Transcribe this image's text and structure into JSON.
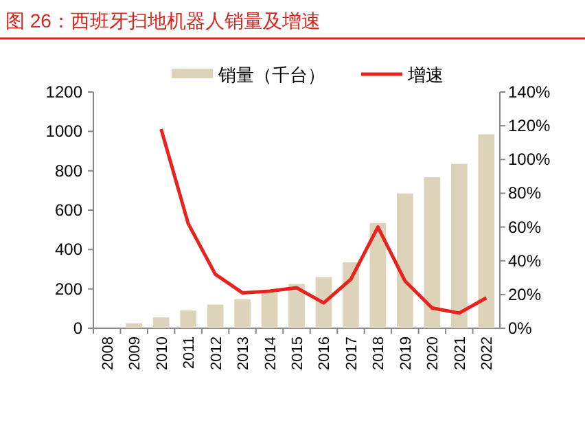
{
  "chart_data": {
    "type": "bar",
    "title": "图 26：西班牙扫地机器人销量及增速",
    "categories": [
      "2008",
      "2009",
      "2010",
      "2011",
      "2012",
      "2013",
      "2014",
      "2015",
      "2016",
      "2017",
      "2018",
      "2019",
      "2020",
      "2021",
      "2022"
    ],
    "series": [
      {
        "name": "销量（千台）",
        "color": "#ddd3bb",
        "values": [
          null,
          25,
          55,
          90,
          120,
          147,
          180,
          225,
          260,
          335,
          535,
          685,
          767,
          835,
          985
        ]
      },
      {
        "name": "增速",
        "type": "line",
        "axis": "y2",
        "color": "#e8231e",
        "values": [
          null,
          null,
          118,
          62,
          32,
          21,
          22,
          24,
          15,
          29,
          60,
          28,
          12,
          9,
          18
        ]
      }
    ],
    "ylim": [
      0,
      1200
    ],
    "yticks": [
      0,
      200,
      400,
      600,
      800,
      1000,
      1200
    ],
    "y2lim": [
      0,
      140
    ],
    "y2ticks": [
      {
        "value": 0,
        "label": "0%"
      },
      {
        "value": 20,
        "label": "20%"
      },
      {
        "value": 40,
        "label": "40%"
      },
      {
        "value": 60,
        "label": "60%"
      },
      {
        "value": 80,
        "label": "80%"
      },
      {
        "value": 100,
        "label": "100%"
      },
      {
        "value": 120,
        "label": "120%"
      },
      {
        "value": 140,
        "label": "140%"
      }
    ],
    "legend": "top",
    "grid": false
  }
}
